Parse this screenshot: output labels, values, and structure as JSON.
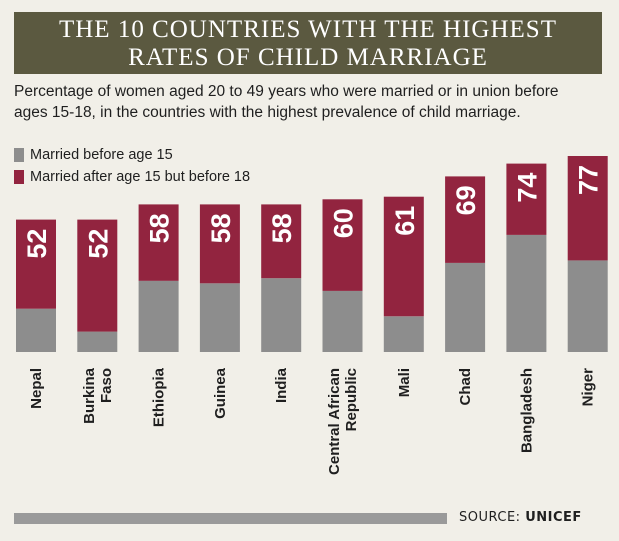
{
  "chart_data": {
    "type": "bar",
    "title": "THE 10 COUNTRIES WITH THE HIGHEST RATES OF CHILD MARRIAGE",
    "title_lines": [
      "THE 10 COUNTRIES WITH THE HIGHEST",
      "RATES OF CHILD MARRIAGE"
    ],
    "subtitle_lines": [
      "Percentage of women aged 20 to 49 years who were married or in union before",
      "ages 15-18, in the countries with the highest prevalence of child marriage."
    ],
    "categories": [
      [
        "Nepal"
      ],
      [
        "Burkina",
        "Faso"
      ],
      [
        "Ethiopia"
      ],
      [
        "Guinea"
      ],
      [
        "India"
      ],
      [
        "Central African",
        "Republic"
      ],
      [
        "Mali"
      ],
      [
        "Chad"
      ],
      [
        "Bangladesh"
      ],
      [
        "Niger"
      ]
    ],
    "totals": [
      52,
      52,
      58,
      58,
      58,
      60,
      61,
      69,
      74,
      77
    ],
    "series": [
      {
        "name": "Married before age 15",
        "color": "#8d8d8d",
        "values": [
          17,
          8,
          28,
          27,
          29,
          24,
          14,
          35,
          46,
          36
        ]
      },
      {
        "name": "Married after age 15 but before 18",
        "color": "#92243f",
        "values": [
          35,
          44,
          30,
          31,
          29,
          36,
          47,
          34,
          28,
          41
        ]
      }
    ],
    "ylim": [
      0,
      77
    ],
    "grid": false,
    "legend_position": "top-left"
  },
  "source": {
    "label": "SOURCE:",
    "name": "UNICEF"
  }
}
